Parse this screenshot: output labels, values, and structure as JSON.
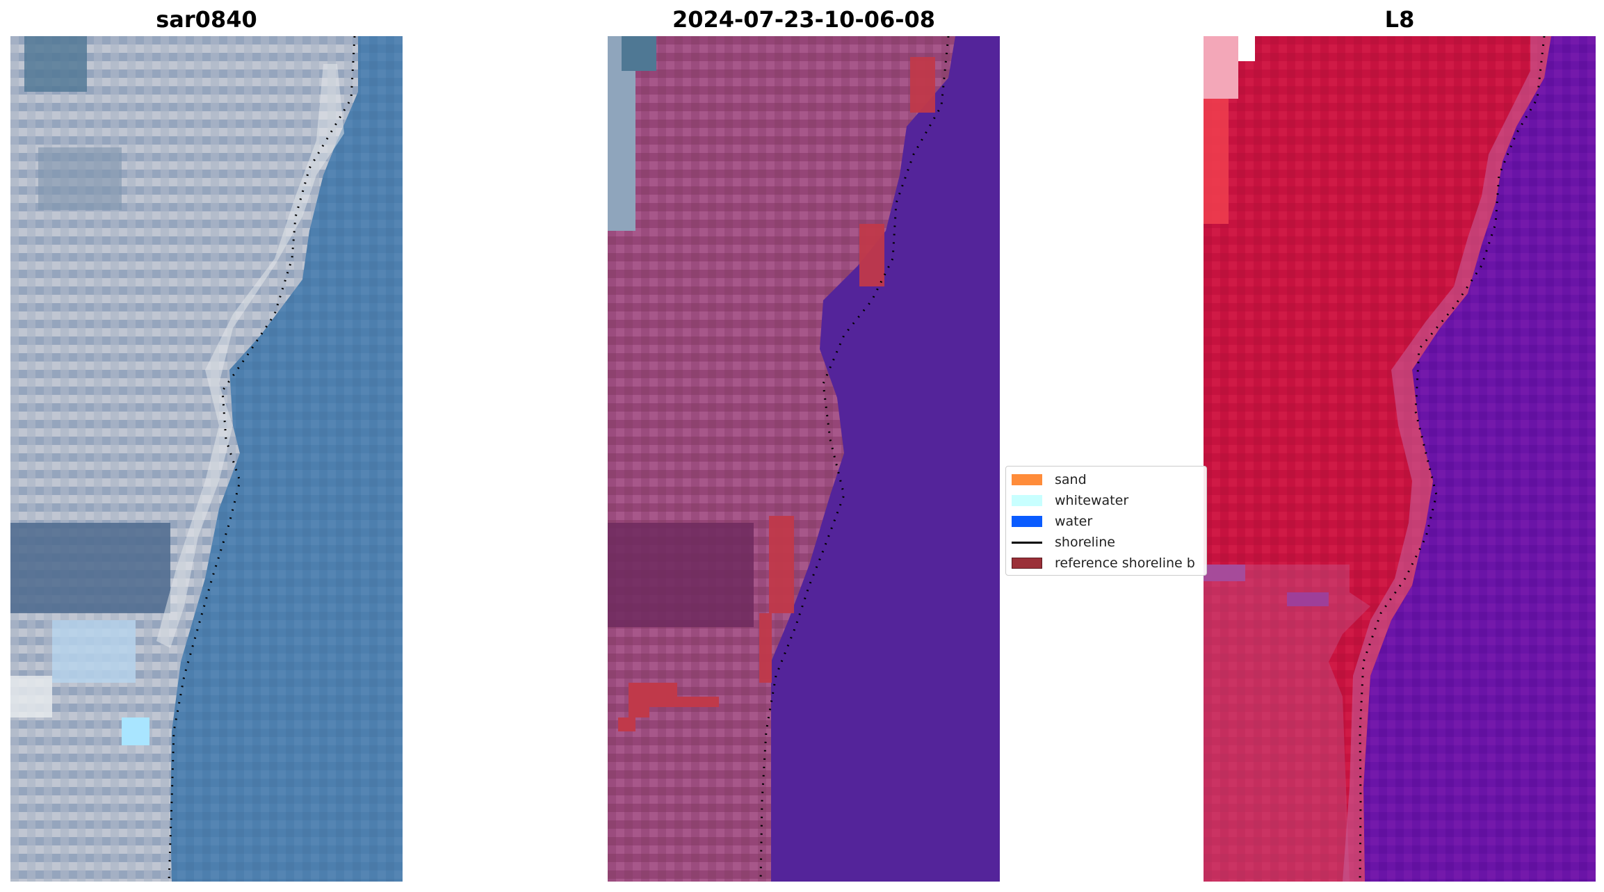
{
  "panels": [
    {
      "title": "sar0840"
    },
    {
      "title": "2024-07-23-10-06-08"
    },
    {
      "title": "L8"
    }
  ],
  "legend": {
    "items": [
      {
        "label": "sand",
        "color": "#ff8c3a",
        "kind": "patch"
      },
      {
        "label": "whitewater",
        "color": "#c8ffff",
        "kind": "patch"
      },
      {
        "label": "water",
        "color": "#0a5cff",
        "kind": "patch"
      },
      {
        "label": "shoreline",
        "color": "#000000",
        "kind": "line"
      },
      {
        "label": "reference shoreline b",
        "color": "#9b3038",
        "kind": "patch"
      }
    ]
  },
  "colors": {
    "rgb_land": "#b4bccb",
    "rgb_water": "#4f7fae",
    "mid_land": "#9a4a7c",
    "mid_water": "#54249a",
    "mid_reference": "#c0394a",
    "l8_land": "#c8123f",
    "l8_water": "#6a13a6",
    "shoreline_dots": "#000000"
  }
}
